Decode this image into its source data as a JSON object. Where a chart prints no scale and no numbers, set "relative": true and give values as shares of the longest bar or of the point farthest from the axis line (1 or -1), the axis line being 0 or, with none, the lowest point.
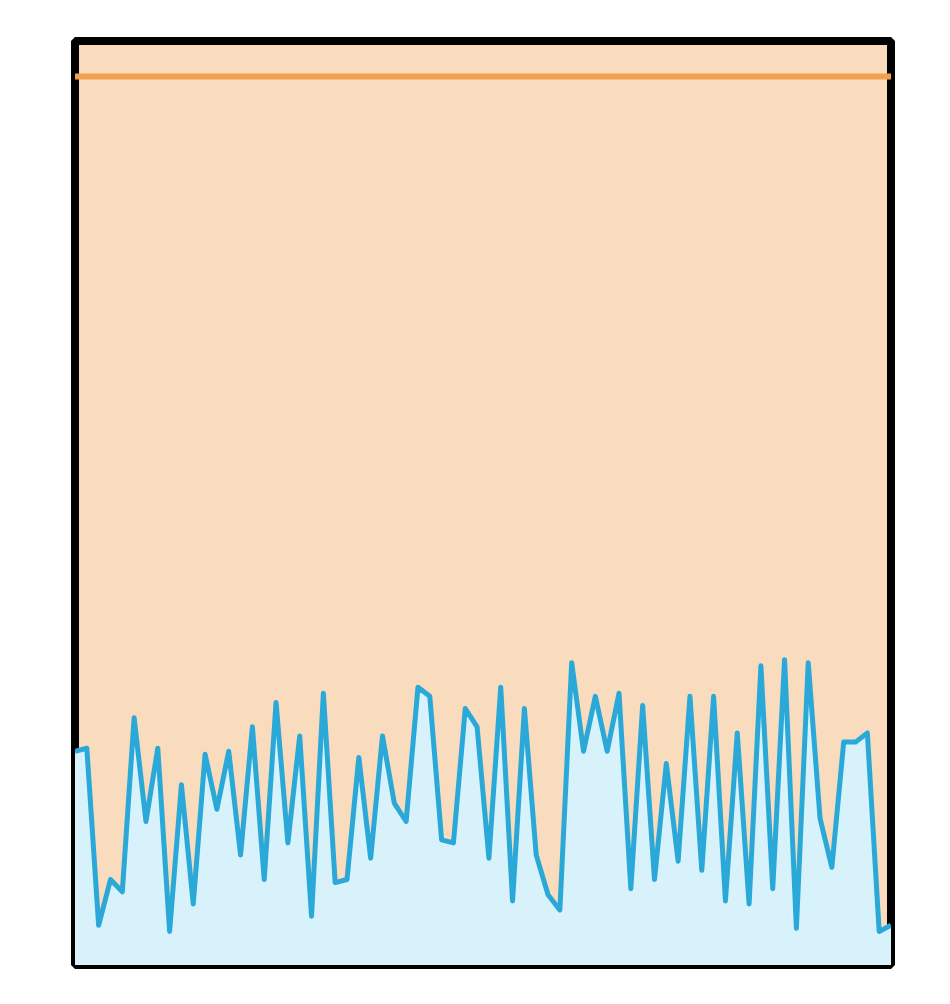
{
  "chart_data": {
    "type": "area",
    "relative": true,
    "categories": [
      null,
      null,
      null,
      null,
      null,
      null,
      null,
      null,
      null,
      null,
      null,
      null,
      null,
      null,
      null,
      null,
      null,
      null,
      null,
      null,
      null,
      null,
      null,
      null,
      null,
      null,
      null,
      null,
      null,
      null,
      null,
      null,
      null,
      null,
      null,
      null,
      null,
      null,
      null,
      null,
      null,
      null,
      null,
      null,
      null,
      null,
      null,
      null,
      null,
      null,
      null,
      null,
      null,
      null,
      null,
      null,
      null,
      null,
      null,
      null,
      null,
      null,
      null,
      null,
      null,
      null,
      null,
      null,
      null,
      null
    ],
    "series": [
      {
        "color": "#2aa8d8",
        "values": [
          0.7,
          0.71,
          0.13,
          0.28,
          0.24,
          0.81,
          0.47,
          0.71,
          0.11,
          0.59,
          0.2,
          0.69,
          0.51,
          0.7,
          0.36,
          0.78,
          0.28,
          0.86,
          0.4,
          0.75,
          0.16,
          0.89,
          0.27,
          0.28,
          0.68,
          0.35,
          0.75,
          0.53,
          0.47,
          0.91,
          0.88,
          0.41,
          0.4,
          0.84,
          0.78,
          0.35,
          0.91,
          0.21,
          0.84,
          0.36,
          0.23,
          0.18,
          0.99,
          0.7,
          0.88,
          0.7,
          0.89,
          0.25,
          0.85,
          0.28,
          0.66,
          0.34,
          0.88,
          0.31,
          0.88,
          0.21,
          0.76,
          0.2,
          0.98,
          0.25,
          1.0,
          0.12,
          0.99,
          0.48,
          0.32,
          0.73,
          0.73,
          0.76,
          0.11,
          0.13
        ]
      }
    ],
    "ref_lines": [
      {
        "axis": "y",
        "value": 2.91,
        "color": "#f0a050"
      }
    ]
  }
}
